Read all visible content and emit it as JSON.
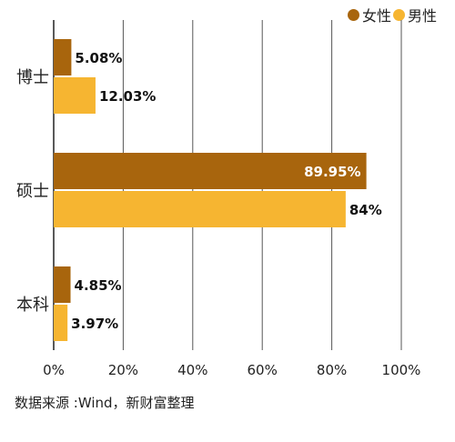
{
  "chart_data": {
    "type": "bar",
    "orientation": "horizontal",
    "categories": [
      "博士",
      "硕士",
      "本科"
    ],
    "series": [
      {
        "name": "女性",
        "color": "#a8650d",
        "values": [
          5.08,
          89.95,
          4.85
        ],
        "labels": [
          "5.08%",
          "89.95%",
          "4.85%"
        ]
      },
      {
        "name": "男性",
        "color": "#f6b531",
        "values": [
          12.03,
          84,
          3.97
        ],
        "labels": [
          "12.03%",
          "84%",
          "3.97%"
        ]
      }
    ],
    "xlim": [
      0,
      100
    ],
    "xticks": [
      0,
      20,
      40,
      60,
      80,
      100
    ],
    "xtick_labels": [
      "0%",
      "20%",
      "40%",
      "60%",
      "80%",
      "100%"
    ],
    "grid": true,
    "legend_position": "top-right"
  },
  "legend": {
    "female": "女性",
    "male": "男性"
  },
  "source": "数据来源 :Wind，新财富整理"
}
